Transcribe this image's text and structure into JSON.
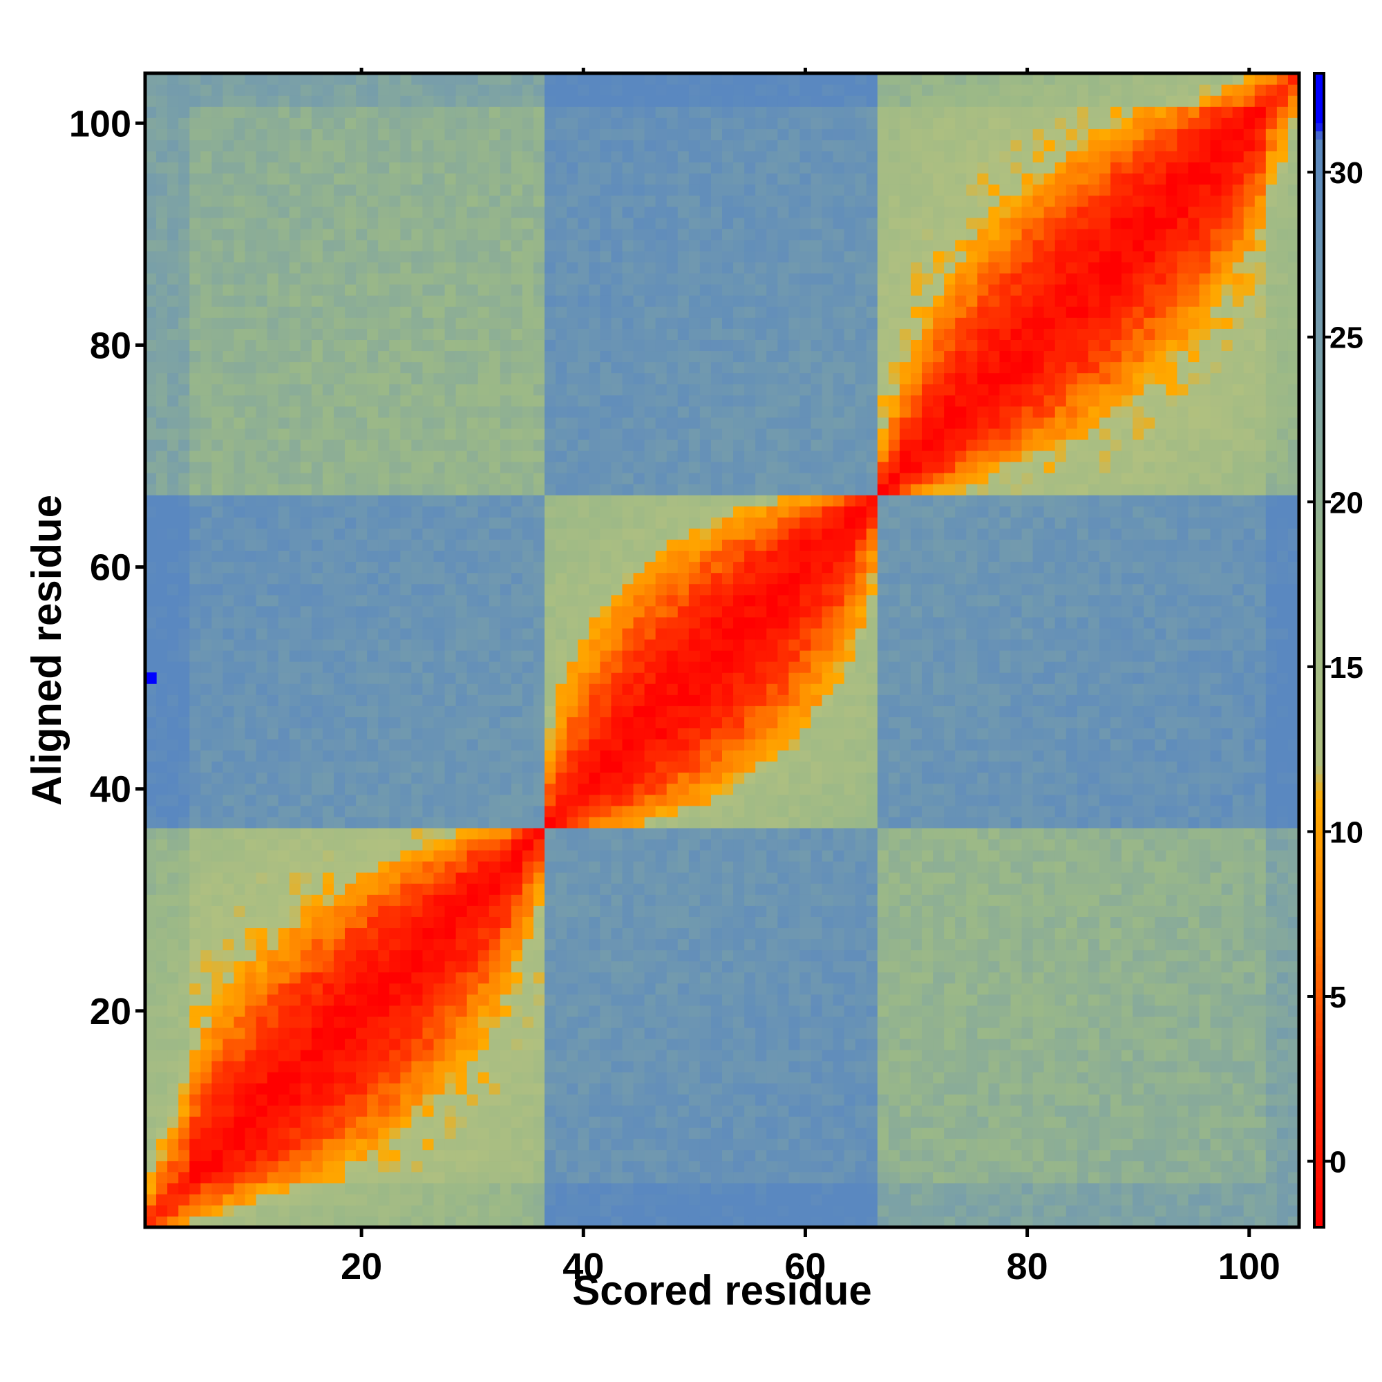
{
  "chart_data": {
    "type": "heatmap",
    "title": "",
    "xlabel": "Scored residue",
    "ylabel": "Aligned residue",
    "n_residues": 104,
    "xlim": [
      1,
      104
    ],
    "ylim": [
      1,
      104
    ],
    "x_ticks": [
      20,
      40,
      60,
      80,
      100
    ],
    "y_ticks": [
      20,
      40,
      60,
      80,
      100
    ],
    "colorbar": {
      "range": [
        -2,
        33
      ],
      "ticks": [
        0,
        5,
        10,
        15,
        20,
        25,
        30
      ],
      "stops": [
        {
          "value": -2,
          "color": "#ff0000"
        },
        {
          "value": 3,
          "color": "#ff3300"
        },
        {
          "value": 7,
          "color": "#ff8000"
        },
        {
          "value": 11,
          "color": "#ffaa00"
        },
        {
          "value": 12,
          "color": "#b0c080"
        },
        {
          "value": 18,
          "color": "#9ab888"
        },
        {
          "value": 24,
          "color": "#7aa0a8"
        },
        {
          "value": 31,
          "color": "#5a88c0"
        },
        {
          "value": 31.5,
          "color": "#0000ff"
        },
        {
          "value": 33,
          "color": "#0000ff"
        }
      ]
    },
    "description_domains": [
      {
        "start": 1,
        "end": 36
      },
      {
        "start": 37,
        "end": 66
      },
      {
        "start": 67,
        "end": 104
      }
    ],
    "highlight_points": [
      {
        "x": 1,
        "y": 50,
        "value": 33
      }
    ]
  }
}
